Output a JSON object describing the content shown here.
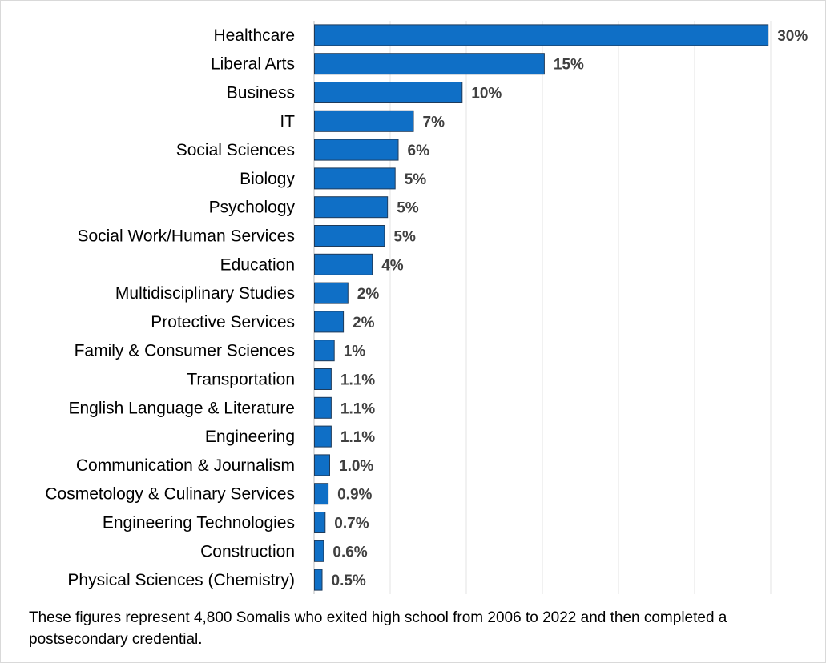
{
  "chart_data": {
    "type": "bar",
    "orientation": "horizontal",
    "title": "",
    "xlabel": "",
    "ylabel": "",
    "categories": [
      "Healthcare",
      "Liberal Arts",
      "Business",
      "IT",
      "Social Sciences",
      "Biology",
      "Psychology",
      "Social Work/Human Services",
      "Education",
      "Multidisciplinary Studies",
      "Protective Services",
      "Family & Consumer Sciences",
      "Transportation",
      "English Language & Literature",
      "Engineering",
      "Communication & Journalism",
      "Cosmetology & Culinary Services",
      "Engineering Technologies",
      "Construction",
      "Physical Sciences (Chemistry)"
    ],
    "values": [
      29.8,
      15.1,
      9.7,
      6.5,
      5.5,
      5.3,
      4.8,
      4.6,
      3.8,
      2.2,
      1.9,
      1.3,
      1.1,
      1.1,
      1.1,
      1.0,
      0.9,
      0.7,
      0.6,
      0.5
    ],
    "data_labels": [
      "30%",
      "15%",
      "10%",
      "7%",
      "6%",
      "5%",
      "5%",
      "5%",
      "4%",
      "2%",
      "2%",
      "1%",
      "1.1%",
      "1.1%",
      "1.1%",
      "1.0%",
      "0.9%",
      "0.7%",
      "0.6%",
      "0.5%"
    ],
    "xlim": [
      0,
      30
    ],
    "vertical_gridlines": true,
    "tick_labels_shown": false,
    "bar_color": "#0f6fc6",
    "bar_edge_color": "#1f3b5a",
    "gridline_color": "#e3e3e3",
    "value_label_color": "#404040"
  },
  "footnote": "These figures represent 4,800 Somalis who exited high school from 2006 to 2022 and then completed a postsecondary credential."
}
